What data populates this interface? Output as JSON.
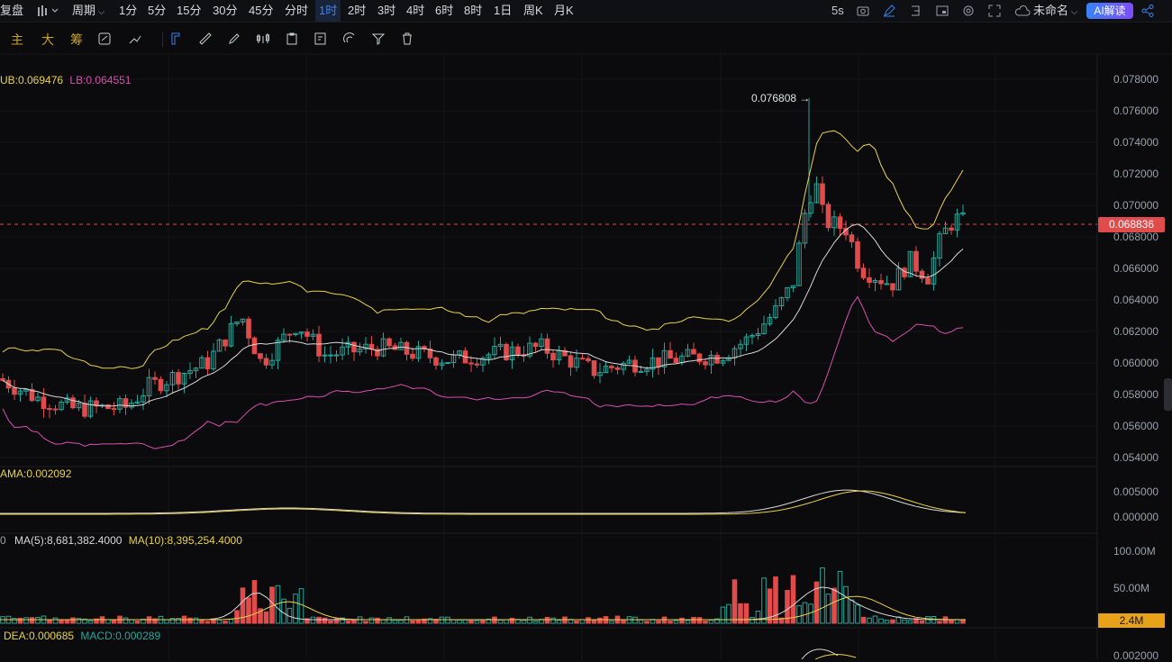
{
  "topbar": {
    "restore_label": "复盘",
    "period_label": "周期",
    "intervals": [
      "1分",
      "5分",
      "15分",
      "30分",
      "45分",
      "分时",
      "1时",
      "2时",
      "3时",
      "4时",
      "6时",
      "8时",
      "1日",
      "周K",
      "月K"
    ],
    "active_interval": "1时",
    "refresh_rate": "5s",
    "layout_name": "未命名",
    "ai_label": "AI解读"
  },
  "toolbar": {
    "main_label": "主",
    "big_label": "大",
    "chip_label": "筹"
  },
  "legends": {
    "boll_ub": "UB:0.069476",
    "boll_lb": "LB:0.064551",
    "ama": "AMA:0.002092",
    "vol_prefix": "0",
    "vol_ma5": "MA(5):8,681,382.4000",
    "vol_ma10": "MA(10):8,395,254.4000",
    "macd_dea": "DEA:0.000685",
    "macd_macd": "MACD:0.000289"
  },
  "price_axis": [
    "0.078000",
    "0.076000",
    "0.074000",
    "0.072000",
    "0.070000",
    "0.068000",
    "0.066000",
    "0.064000",
    "0.062000",
    "0.060000",
    "0.058000",
    "0.056000",
    "0.054000"
  ],
  "ama_axis": [
    "0.005000",
    "0.000000"
  ],
  "vol_axis": [
    "100.00M",
    "50.00M"
  ],
  "macd_axis": [
    "0.002000"
  ],
  "current_price": "0.068836",
  "current_volume": "2.4M",
  "peak_label": "0.076808 →",
  "colors": {
    "up": "#26a69a",
    "down": "#e04b4b",
    "ub": "#e8d24a",
    "lb": "#d94fb0",
    "mid": "#d8d8d8",
    "accent": "#3b82f6"
  }
}
